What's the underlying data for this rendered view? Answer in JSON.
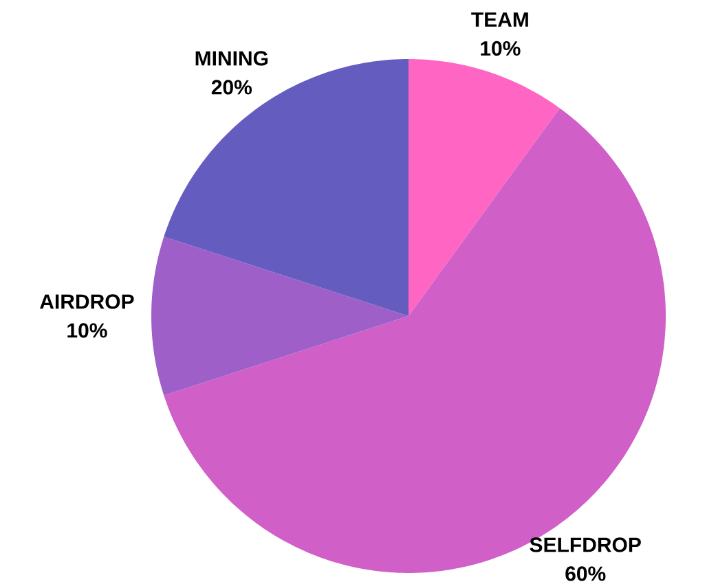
{
  "chart_data": {
    "type": "pie",
    "categories": [
      "TEAM",
      "SELFDROP",
      "AIRDROP",
      "MINING"
    ],
    "values": [
      10,
      60,
      10,
      20
    ],
    "value_labels": [
      "10%",
      "60%",
      "10%",
      "20%"
    ],
    "colors": [
      "#ff66c4",
      "#d05fc7",
      "#9f5fc8",
      "#645cbf"
    ]
  }
}
